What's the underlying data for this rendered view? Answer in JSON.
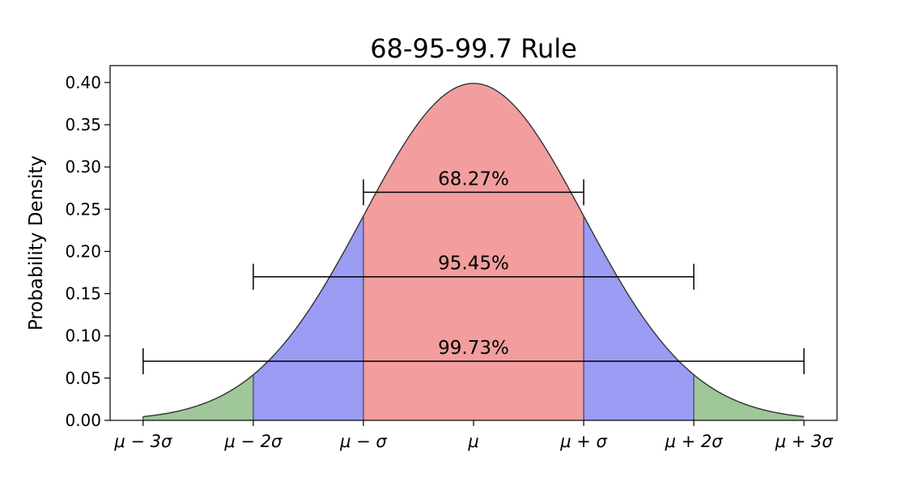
{
  "chart_data": {
    "type": "area",
    "title": "68-95-99.7 Rule",
    "xlabel": "",
    "ylabel": "Probability Density",
    "xlim": [
      -3.3,
      3.3
    ],
    "ylim": [
      0,
      0.42
    ],
    "x_ticks": [
      {
        "value": -3,
        "label": "μ − 3σ"
      },
      {
        "value": -2,
        "label": "μ − 2σ"
      },
      {
        "value": -1,
        "label": "μ − σ"
      },
      {
        "value": 0,
        "label": "μ"
      },
      {
        "value": 1,
        "label": "μ + σ"
      },
      {
        "value": 2,
        "label": "μ + 2σ"
      },
      {
        "value": 3,
        "label": "μ + 3σ"
      }
    ],
    "y_ticks": [
      {
        "value": 0.0,
        "label": "0.00"
      },
      {
        "value": 0.05,
        "label": "0.05"
      },
      {
        "value": 0.1,
        "label": "0.10"
      },
      {
        "value": 0.15,
        "label": "0.15"
      },
      {
        "value": 0.2,
        "label": "0.20"
      },
      {
        "value": 0.25,
        "label": "0.25"
      },
      {
        "value": 0.3,
        "label": "0.30"
      },
      {
        "value": 0.35,
        "label": "0.35"
      },
      {
        "value": 0.4,
        "label": "0.40"
      }
    ],
    "regions": [
      {
        "from": -3,
        "to": -2,
        "color": "#9fc79a"
      },
      {
        "from": -2,
        "to": -1,
        "color": "#9b9cf4"
      },
      {
        "from": -1,
        "to": 1,
        "color": "#f29e9e"
      },
      {
        "from": 1,
        "to": 2,
        "color": "#9b9cf4"
      },
      {
        "from": 2,
        "to": 3,
        "color": "#9fc79a"
      }
    ],
    "intervals": [
      {
        "from": -1,
        "to": 1,
        "y": 0.27,
        "label": "68.27%"
      },
      {
        "from": -2,
        "to": 2,
        "y": 0.17,
        "label": "95.45%"
      },
      {
        "from": -3,
        "to": 3,
        "y": 0.07,
        "label": "99.73%"
      }
    ],
    "grid": false,
    "legend": false
  }
}
